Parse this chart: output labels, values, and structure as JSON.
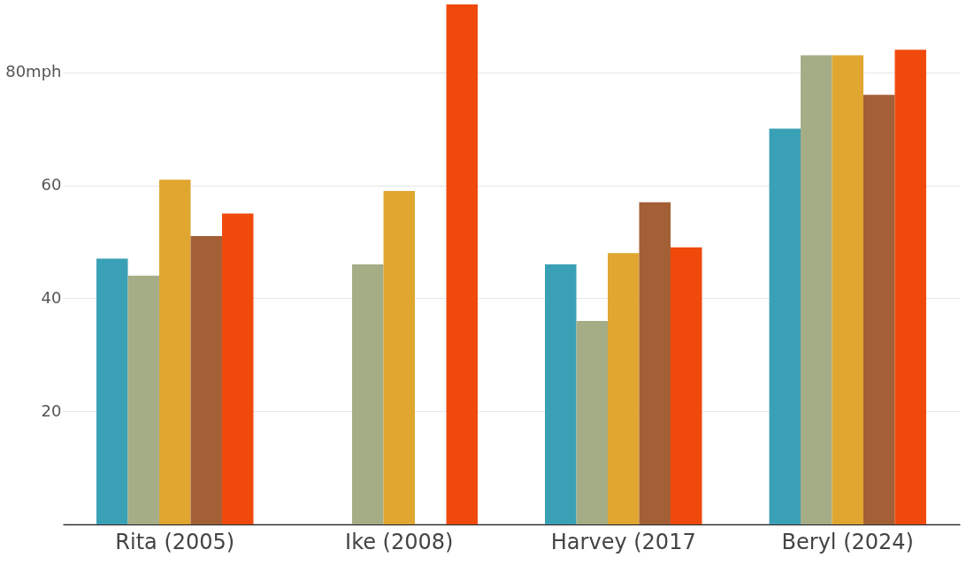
{
  "chart_data": {
    "type": "bar",
    "categories": [
      "Rita (2005)",
      "Ike (2008)",
      "Harvey (2017",
      "Beryl (2024)"
    ],
    "series": [
      {
        "color": "#3aa0b5",
        "values": [
          47,
          null,
          46,
          70
        ]
      },
      {
        "color": "#a5ad86",
        "values": [
          44,
          46,
          36,
          83
        ]
      },
      {
        "color": "#e0a630",
        "values": [
          61,
          59,
          48,
          83
        ]
      },
      {
        "color": "#a35f35",
        "values": [
          51,
          null,
          57,
          76
        ]
      },
      {
        "color": "#ef4a0c",
        "values": [
          55,
          92,
          49,
          84
        ]
      }
    ],
    "ylim": [
      0,
      92
    ],
    "yticks": [
      20,
      40,
      60,
      {
        "value": 80,
        "label": "80mph"
      }
    ],
    "grid": "y"
  }
}
